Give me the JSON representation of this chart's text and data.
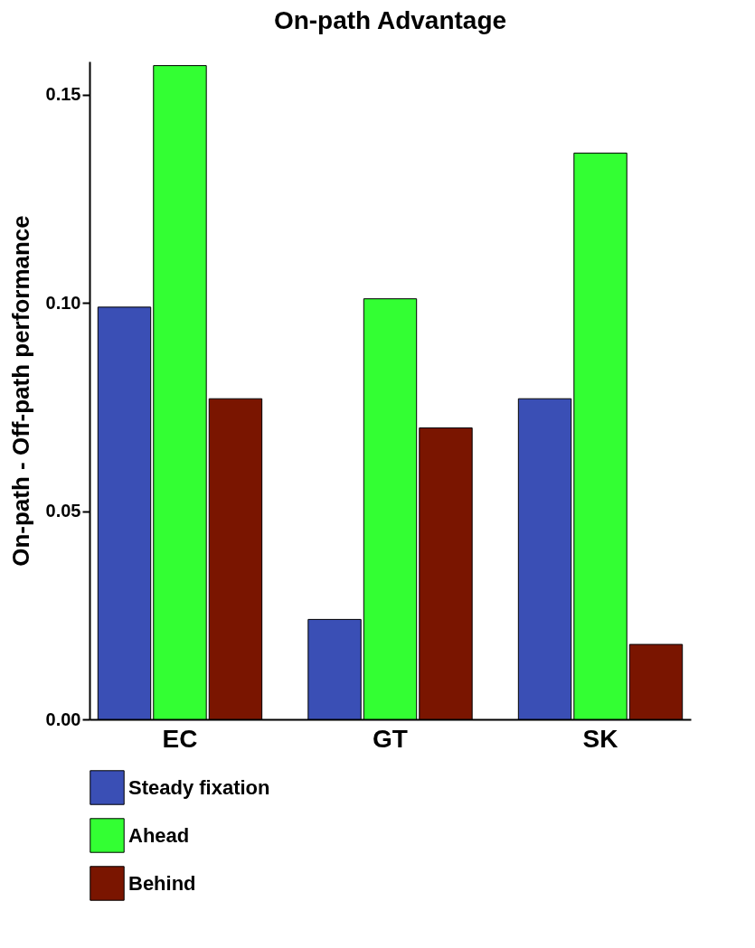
{
  "chart_data": {
    "type": "bar",
    "title": "On-path Advantage",
    "ylabel": "On-path - Off-path performance",
    "categories": [
      "EC",
      "GT",
      "SK"
    ],
    "series": [
      {
        "name": "Steady fixation",
        "color": "#3a4fb5",
        "values": [
          0.099,
          0.024,
          0.077
        ]
      },
      {
        "name": "Ahead",
        "color": "#33ff33",
        "values": [
          0.157,
          0.101,
          0.136
        ]
      },
      {
        "name": "Behind",
        "color": "#7a1500",
        "values": [
          0.077,
          0.07,
          0.018
        ]
      }
    ],
    "ylim": [
      0,
      0.158
    ],
    "yticks": [
      {
        "value": 0,
        "label": "0.00"
      },
      {
        "value": 0.05,
        "label": "0.05"
      },
      {
        "value": 0.1,
        "label": "0.10"
      },
      {
        "value": 0.15,
        "label": "0.15"
      }
    ],
    "grid": false,
    "legend": "bottom"
  }
}
